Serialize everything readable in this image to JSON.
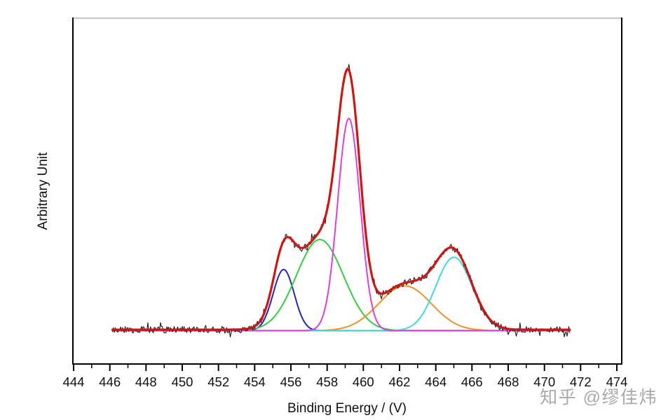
{
  "page": {
    "background_color": "#ffffff"
  },
  "watermark": {
    "text": "知乎 @缪佳炜",
    "color": "#a9a9a9"
  },
  "chart_data": {
    "type": "line",
    "title": "",
    "xlabel": "Binding Energy / (V)",
    "ylabel": "Arbitrary Unit",
    "x_axis": {
      "min": 444,
      "max": 474.3,
      "major_ticks": [
        444,
        446,
        448,
        450,
        452,
        454,
        456,
        458,
        460,
        462,
        464,
        466,
        468,
        470,
        472,
        474
      ],
      "minor_ticks": [
        445,
        447,
        449,
        451,
        453,
        455,
        457,
        459,
        461,
        463,
        465,
        467,
        469,
        471,
        473
      ]
    },
    "y_axis": {
      "min": 0,
      "max": 1.2,
      "ticks": [],
      "note": "arbitrary intensity units, no tick labels shown"
    },
    "grid": false,
    "legend": "none",
    "data_x_range": [
      446.15,
      471.4
    ],
    "baseline_level": 0,
    "envelope_peak_level": 1.0,
    "series": [
      {
        "name": "raw-data",
        "role": "measured",
        "color": "#1b1b1b",
        "noise_amplitude": 0.013,
        "noise_seed": 11
      },
      {
        "name": "fit-envelope",
        "role": "fit",
        "color": "#cf1615"
      },
      {
        "name": "peak-1",
        "role": "component",
        "color": "#2525bd",
        "center": 455.6,
        "sigma": 0.58,
        "amplitude": 0.235
      },
      {
        "name": "peak-2",
        "role": "component",
        "color": "#35cb44",
        "center": 457.6,
        "sigma": 1.3,
        "amplitude": 0.35
      },
      {
        "name": "peak-3",
        "role": "component",
        "color": "#df3fdf",
        "center": 459.2,
        "sigma": 0.62,
        "amplitude": 0.815
      },
      {
        "name": "peak-4",
        "role": "component",
        "color": "#ed9327",
        "center": 462.3,
        "sigma": 1.45,
        "amplitude": 0.172
      },
      {
        "name": "peak-5",
        "role": "component",
        "color": "#41d9da",
        "center": 465.0,
        "sigma": 1.0,
        "amplitude": 0.282
      }
    ],
    "draw_order": [
      "peak-1",
      "peak-2",
      "peak-4",
      "peak-5",
      "peak-3",
      "raw-data",
      "fit-envelope"
    ]
  }
}
